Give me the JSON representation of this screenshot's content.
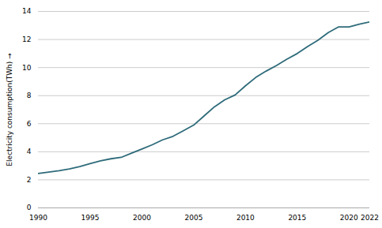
{
  "chart_data": {
    "type": "line",
    "ylabel": "Electricity consumption(TWh)",
    "x": [
      1990,
      1991,
      1992,
      1993,
      1994,
      1995,
      1996,
      1997,
      1998,
      1999,
      2000,
      2001,
      2002,
      2003,
      2004,
      2005,
      2006,
      2007,
      2008,
      2009,
      2010,
      2011,
      2012,
      2013,
      2014,
      2015,
      2016,
      2017,
      2018,
      2019,
      2020,
      2021,
      2022
    ],
    "values": [
      2.45,
      2.55,
      2.65,
      2.78,
      2.95,
      3.15,
      3.35,
      3.5,
      3.6,
      3.9,
      4.2,
      4.5,
      4.85,
      5.1,
      5.5,
      5.9,
      6.55,
      7.2,
      7.7,
      8.05,
      8.7,
      9.3,
      9.75,
      10.15,
      10.6,
      11.0,
      11.5,
      11.95,
      12.5,
      12.9,
      12.9,
      13.1,
      13.25
    ],
    "color": "#2e6b7a",
    "xlim": [
      1990,
      2022
    ],
    "ylim": [
      0,
      14
    ],
    "xticks": [
      1990,
      1995,
      2000,
      2005,
      2010,
      2015,
      2020,
      2022
    ],
    "yticks": [
      0,
      2,
      4,
      6,
      8,
      10,
      12,
      14
    ],
    "grid": "y"
  }
}
